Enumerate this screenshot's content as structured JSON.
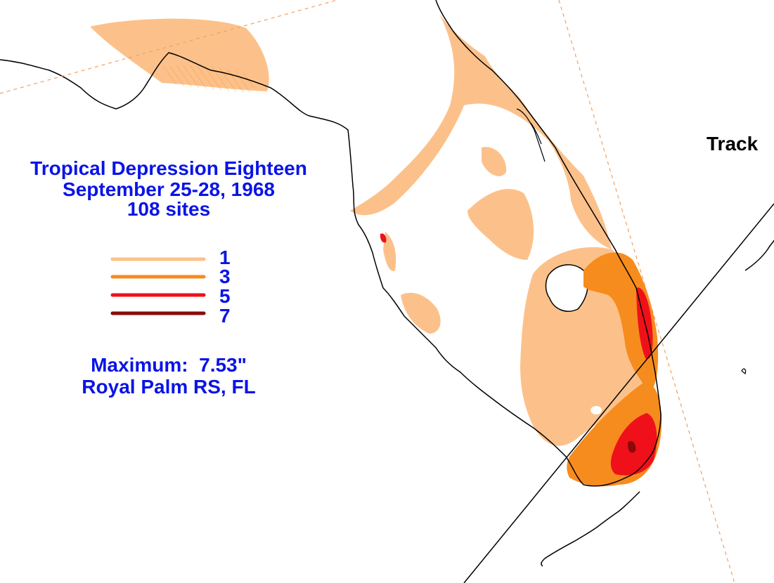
{
  "title": {
    "line1": "Tropical Depression Eighteen",
    "line2": "September 25-28, 1968",
    "line3": "108 sites"
  },
  "legend": [
    {
      "label": "1",
      "color": "#fcc18a"
    },
    {
      "label": "3",
      "color": "#f68c1e"
    },
    {
      "label": "5",
      "color": "#f0101a"
    },
    {
      "label": "7",
      "color": "#8a0a0a"
    }
  ],
  "maximum": {
    "text": "Maximum:  7.53\"",
    "site": "Royal Palm RS, FL"
  },
  "track_label": "Track",
  "colors": {
    "text": "#0a14e6",
    "coast": "#000000",
    "track": "#f0a064",
    "background": "#ffffff"
  }
}
